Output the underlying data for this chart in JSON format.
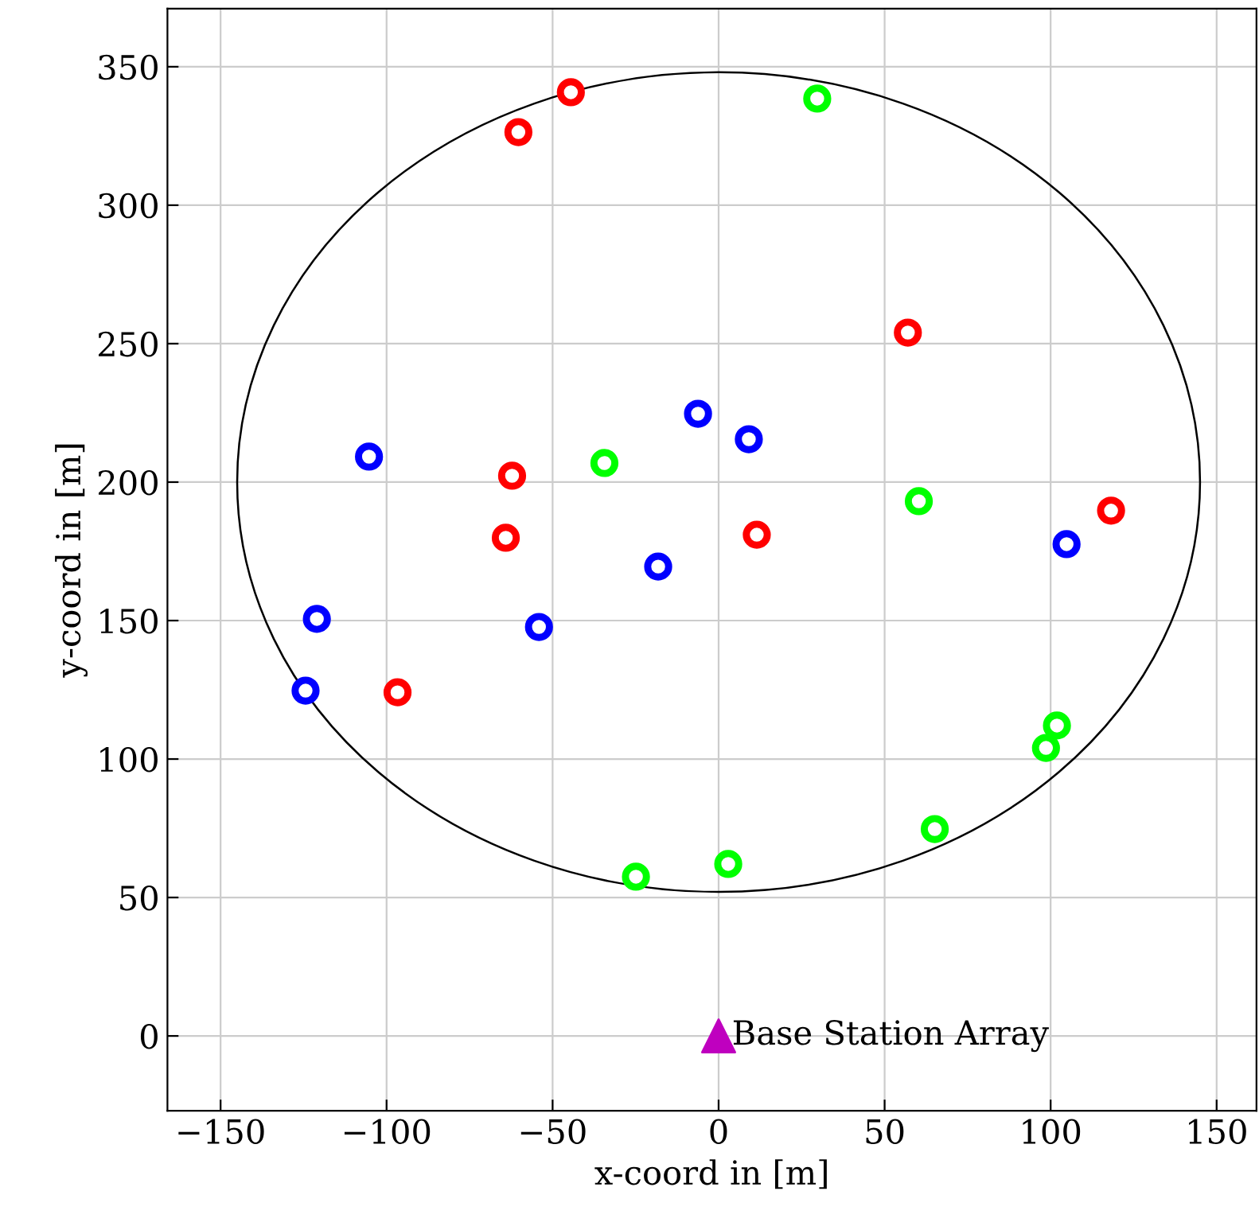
{
  "chart_data": {
    "type": "scatter",
    "xlabel": "x-coord in [m]",
    "ylabel": "y-coord in [m]",
    "xlim": [
      -166,
      162
    ],
    "ylim": [
      -27,
      371
    ],
    "xticks": [
      {
        "value": -150,
        "label": "−150"
      },
      {
        "value": -100,
        "label": "−100"
      },
      {
        "value": -50,
        "label": "−50"
      },
      0,
      50,
      100,
      150
    ],
    "yticks": [
      0,
      50,
      100,
      150,
      200,
      250,
      300,
      350
    ],
    "grid": true,
    "marker": "circle",
    "series": [
      {
        "color": "#ff0000",
        "x": [
          -44.5,
          -60.3,
          57,
          -62.2,
          -64.1,
          11.5,
          118.2,
          -96.7
        ],
        "values": [
          340.8,
          326.4,
          254,
          202.3,
          179.9,
          181,
          189.7,
          124.1
        ]
      },
      {
        "color": "#0000ff",
        "x": [
          -6.2,
          9.1,
          -105.3,
          -18.2,
          104.8,
          -121,
          -54.1,
          -124.4
        ],
        "values": [
          224.7,
          215.5,
          209.2,
          169.5,
          177.6,
          150.6,
          147.7,
          124.7
        ]
      },
      {
        "color": "#00ff00",
        "x": [
          29.7,
          -34.4,
          60.3,
          101.9,
          98.6,
          65.1,
          2.9,
          -24.9
        ],
        "values": [
          338.5,
          206.9,
          193.1,
          112.1,
          104,
          74.7,
          62.1,
          57.5
        ]
      },
      {
        "type": "scatter",
        "marker": "triangle",
        "color": "#bf00bf",
        "x": [
          0
        ],
        "values": [
          0
        ]
      }
    ],
    "annotations": [
      {
        "text": "Base Station Array",
        "x": 0,
        "y": 0
      }
    ]
  }
}
